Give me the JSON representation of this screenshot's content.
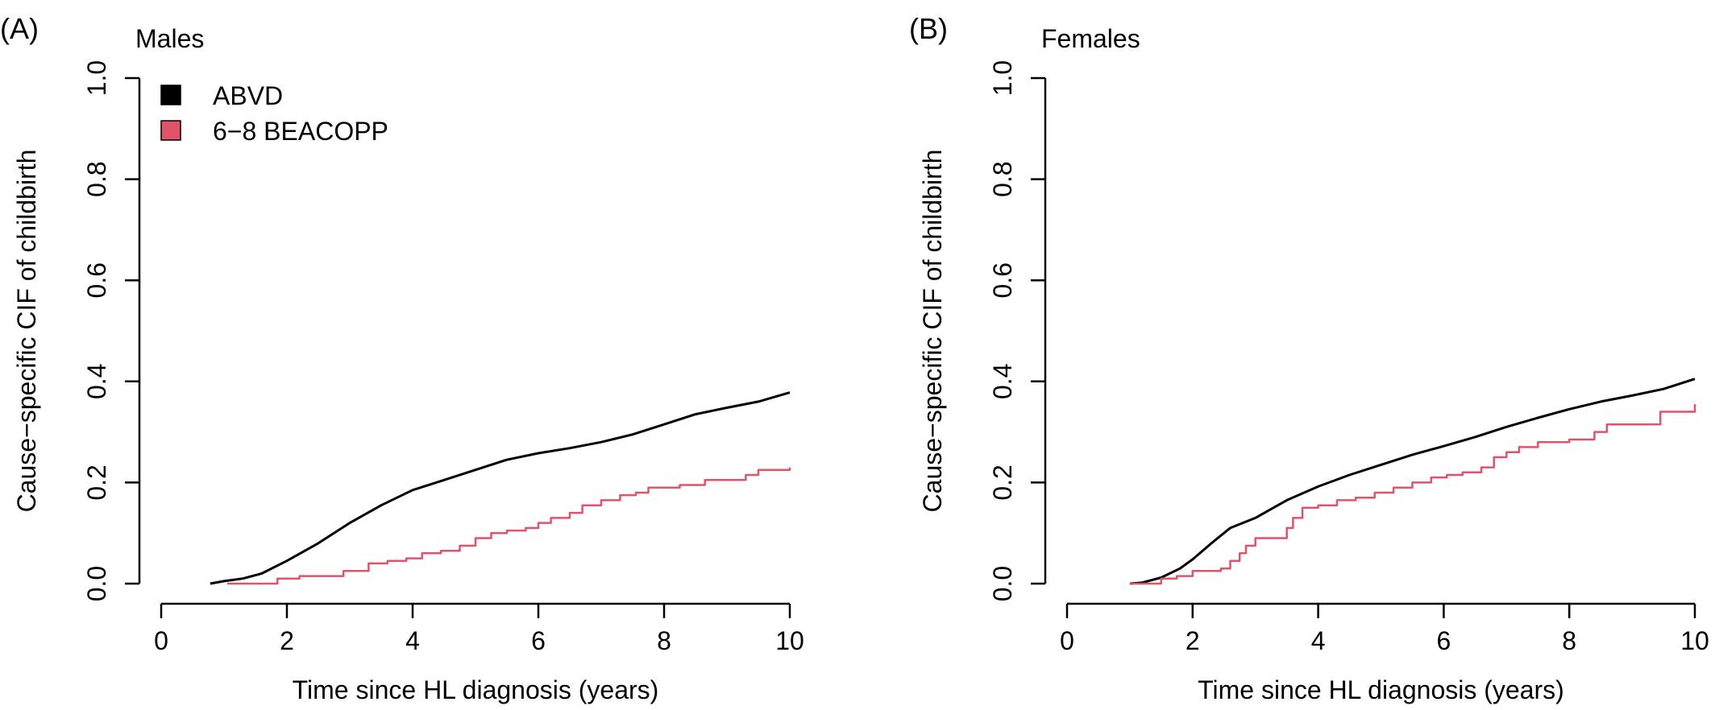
{
  "chart_data": [
    {
      "type": "line",
      "panel_label": "(A)",
      "title": "Males",
      "xlabel": "Time since HL diagnosis (years)",
      "ylabel": "Cause−specific CIF of childbirth",
      "xlim": [
        0,
        10
      ],
      "ylim": [
        0,
        1
      ],
      "xticks": [
        "0",
        "2",
        "4",
        "6",
        "8",
        "10"
      ],
      "yticks": [
        "0.0",
        "0.2",
        "0.4",
        "0.6",
        "0.8",
        "1.0"
      ],
      "legend": {
        "placement": "top-left",
        "entries": [
          "ABVD",
          "6−8 BEACOPP"
        ]
      },
      "grid": false,
      "series": [
        {
          "name": "ABVD",
          "color": "#000000",
          "step": false,
          "x": [
            0.78,
            1.0,
            1.3,
            1.6,
            2.0,
            2.5,
            3.0,
            3.5,
            4.0,
            4.5,
            5.0,
            5.5,
            6.0,
            6.5,
            7.0,
            7.5,
            8.0,
            8.5,
            9.0,
            9.5,
            10.0
          ],
          "y": [
            0.0,
            0.005,
            0.01,
            0.02,
            0.045,
            0.08,
            0.12,
            0.155,
            0.185,
            0.205,
            0.225,
            0.245,
            0.258,
            0.268,
            0.28,
            0.295,
            0.315,
            0.335,
            0.348,
            0.36,
            0.378
          ]
        },
        {
          "name": "6−8 BEACOPP",
          "color": "#DF536B",
          "step": true,
          "x": [
            1.05,
            1.85,
            2.2,
            2.9,
            3.3,
            3.6,
            3.9,
            4.15,
            4.45,
            4.75,
            5.0,
            5.25,
            5.5,
            5.8,
            6.0,
            6.2,
            6.5,
            6.7,
            7.0,
            7.3,
            7.55,
            7.75,
            8.25,
            8.65,
            9.3,
            9.5,
            10.0
          ],
          "y": [
            0.0,
            0.01,
            0.015,
            0.025,
            0.04,
            0.045,
            0.05,
            0.06,
            0.065,
            0.075,
            0.09,
            0.1,
            0.105,
            0.11,
            0.12,
            0.13,
            0.14,
            0.155,
            0.165,
            0.175,
            0.18,
            0.19,
            0.195,
            0.205,
            0.215,
            0.225,
            0.23
          ]
        }
      ]
    },
    {
      "type": "line",
      "panel_label": "(B)",
      "title": "Females",
      "xlabel": "Time since HL diagnosis (years)",
      "ylabel": "Cause−specific CIF of childbirth",
      "xlim": [
        0,
        10
      ],
      "ylim": [
        0,
        1
      ],
      "xticks": [
        "0",
        "2",
        "4",
        "6",
        "8",
        "10"
      ],
      "yticks": [
        "0.0",
        "0.2",
        "0.4",
        "0.6",
        "0.8",
        "1.0"
      ],
      "grid": false,
      "series": [
        {
          "name": "ABVD",
          "color": "#000000",
          "step": false,
          "x": [
            1.0,
            1.2,
            1.5,
            1.8,
            2.0,
            2.3,
            2.6,
            3.0,
            3.5,
            4.0,
            4.5,
            5.0,
            5.5,
            6.0,
            6.5,
            7.0,
            7.5,
            8.0,
            8.5,
            9.0,
            9.5,
            10.0
          ],
          "y": [
            0.0,
            0.002,
            0.012,
            0.03,
            0.048,
            0.08,
            0.11,
            0.13,
            0.165,
            0.192,
            0.215,
            0.235,
            0.255,
            0.272,
            0.29,
            0.31,
            0.328,
            0.345,
            0.36,
            0.372,
            0.385,
            0.405
          ]
        },
        {
          "name": "6−8 BEACOPP",
          "color": "#DF536B",
          "step": true,
          "x": [
            1.0,
            1.5,
            1.75,
            2.0,
            2.45,
            2.6,
            2.75,
            2.85,
            3.0,
            3.5,
            3.6,
            3.75,
            4.0,
            4.3,
            4.6,
            4.9,
            5.2,
            5.5,
            5.8,
            6.05,
            6.3,
            6.6,
            6.8,
            7.0,
            7.2,
            7.5,
            8.0,
            8.4,
            8.6,
            9.45,
            10.0
          ],
          "y": [
            0.0,
            0.01,
            0.015,
            0.025,
            0.03,
            0.045,
            0.06,
            0.075,
            0.09,
            0.11,
            0.13,
            0.15,
            0.155,
            0.165,
            0.17,
            0.18,
            0.19,
            0.2,
            0.21,
            0.215,
            0.22,
            0.23,
            0.25,
            0.26,
            0.27,
            0.28,
            0.285,
            0.3,
            0.315,
            0.34,
            0.355
          ]
        }
      ]
    }
  ]
}
